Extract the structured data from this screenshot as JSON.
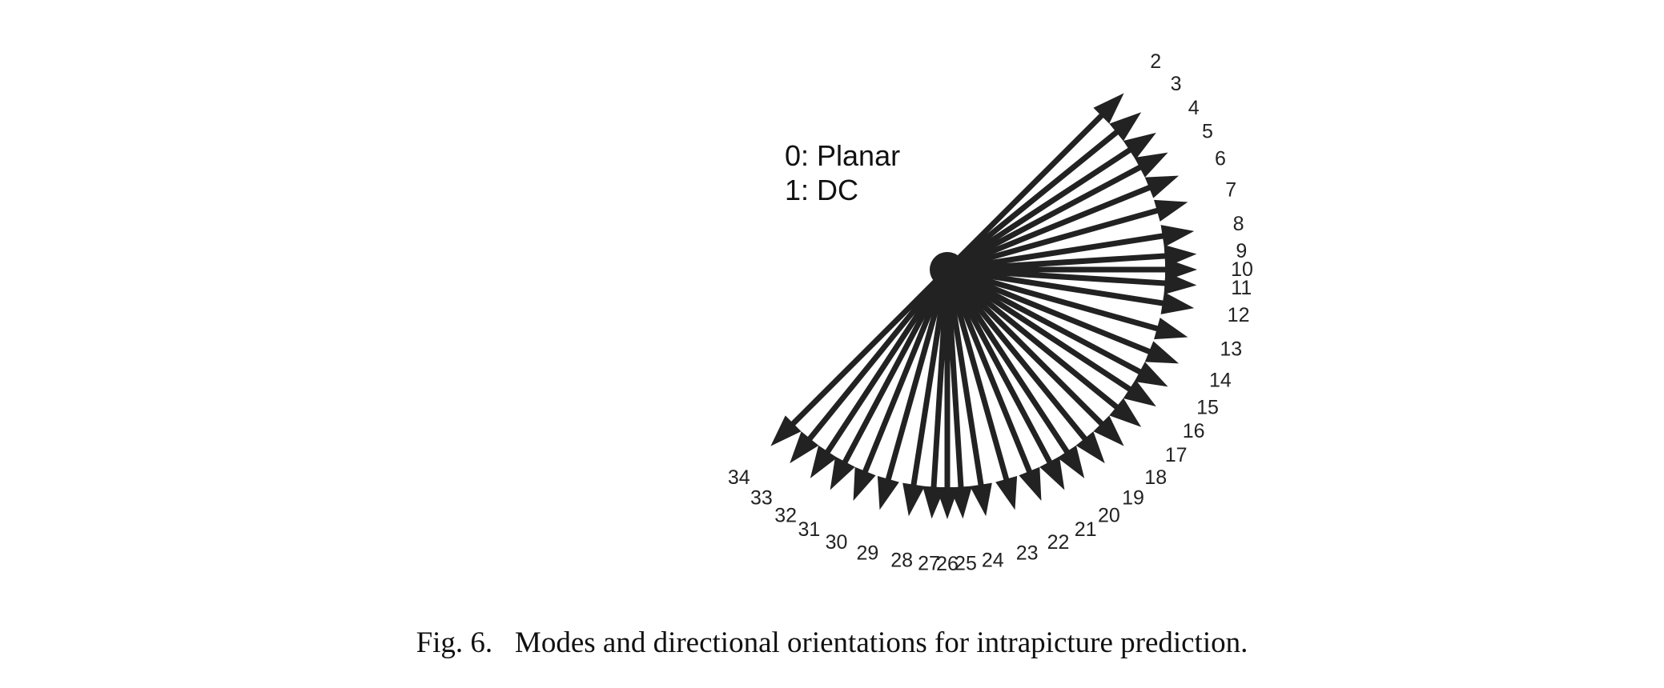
{
  "legend": {
    "line1": "0: Planar",
    "line2": "1: DC"
  },
  "caption": "Fig. 6.   Modes and directional orientations for intrapicture prediction.",
  "colors": {
    "arrow": "#222222",
    "text": "#111111",
    "background": "#ffffff"
  },
  "modes": [
    {
      "id": "2",
      "dx": 32,
      "dy": -32
    },
    {
      "id": "3",
      "dx": 32,
      "dy": -26
    },
    {
      "id": "4",
      "dx": 32,
      "dy": -21
    },
    {
      "id": "5",
      "dx": 32,
      "dy": -17
    },
    {
      "id": "6",
      "dx": 32,
      "dy": -13
    },
    {
      "id": "7",
      "dx": 32,
      "dy": -9
    },
    {
      "id": "8",
      "dx": 32,
      "dy": -5
    },
    {
      "id": "9",
      "dx": 32,
      "dy": -2
    },
    {
      "id": "10",
      "dx": 32,
      "dy": 0
    },
    {
      "id": "11",
      "dx": 32,
      "dy": 2
    },
    {
      "id": "12",
      "dx": 32,
      "dy": 5
    },
    {
      "id": "13",
      "dx": 32,
      "dy": 9
    },
    {
      "id": "14",
      "dx": 32,
      "dy": 13
    },
    {
      "id": "15",
      "dx": 32,
      "dy": 17
    },
    {
      "id": "16",
      "dx": 32,
      "dy": 21
    },
    {
      "id": "17",
      "dx": 32,
      "dy": 26
    },
    {
      "id": "18",
      "dx": 32,
      "dy": 32
    },
    {
      "id": "19",
      "dx": 26,
      "dy": 32
    },
    {
      "id": "20",
      "dx": 21,
      "dy": 32
    },
    {
      "id": "21",
      "dx": 17,
      "dy": 32
    },
    {
      "id": "22",
      "dx": 13,
      "dy": 32
    },
    {
      "id": "23",
      "dx": 9,
      "dy": 32
    },
    {
      "id": "24",
      "dx": 5,
      "dy": 32
    },
    {
      "id": "25",
      "dx": 2,
      "dy": 32
    },
    {
      "id": "26",
      "dx": 0,
      "dy": 32
    },
    {
      "id": "27",
      "dx": -2,
      "dy": 32
    },
    {
      "id": "28",
      "dx": -5,
      "dy": 32
    },
    {
      "id": "29",
      "dx": -9,
      "dy": 32
    },
    {
      "id": "30",
      "dx": -13,
      "dy": 32
    },
    {
      "id": "31",
      "dx": -17,
      "dy": 32
    },
    {
      "id": "32",
      "dx": -21,
      "dy": 32
    },
    {
      "id": "33",
      "dx": -26,
      "dy": 32
    },
    {
      "id": "34",
      "dx": -32,
      "dy": 32
    }
  ]
}
